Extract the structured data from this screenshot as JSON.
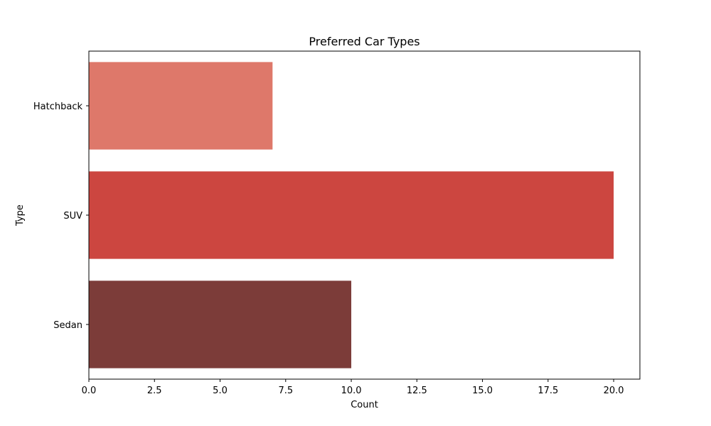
{
  "chart_data": {
    "type": "bar",
    "orientation": "horizontal",
    "title": "Preferred Car Types",
    "xlabel": "Count",
    "ylabel": "Type",
    "categories": [
      "Hatchback",
      "SUV",
      "Sedan"
    ],
    "values": [
      7,
      20,
      10
    ],
    "colors": [
      "#de786a",
      "#cc4640",
      "#7c3c39"
    ],
    "xlim": [
      0,
      21
    ],
    "xticks": [
      0.0,
      2.5,
      5.0,
      7.5,
      10.0,
      12.5,
      15.0,
      17.5,
      20.0
    ],
    "grid": false,
    "legend": "none"
  }
}
